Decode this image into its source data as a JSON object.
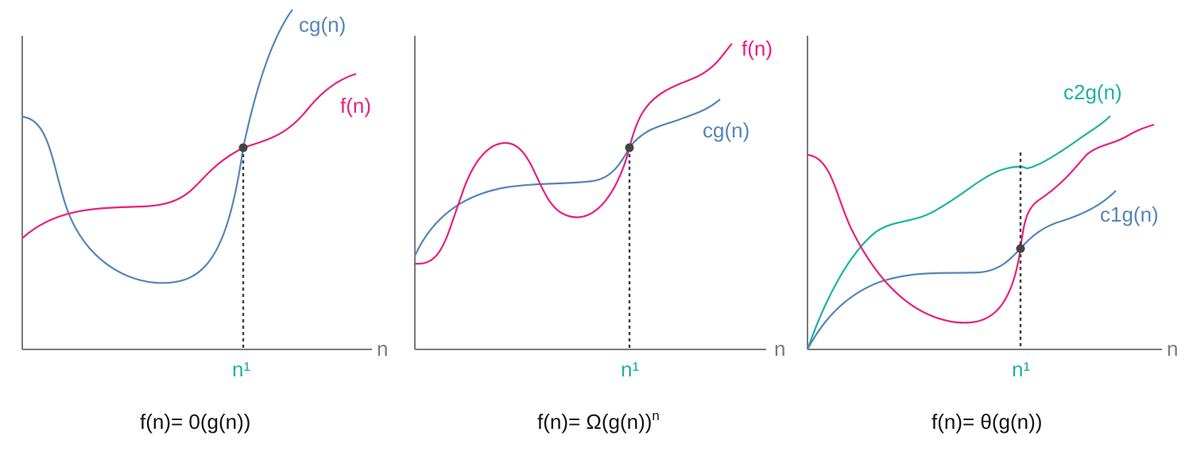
{
  "colors": {
    "f": "#e8217a",
    "g": "#5586b8",
    "g2": "#1cb3a1",
    "axis": "#7a7a7a",
    "marker": "#444444",
    "text": "#111111"
  },
  "panels": [
    {
      "curves": [
        {
          "label": "cg(n)",
          "color_key": "g"
        },
        {
          "label": "f(n)",
          "color_key": "f"
        }
      ],
      "axis_label": "n",
      "marker_label": "n¹",
      "caption": "f(n)= 0(g(n))"
    },
    {
      "curves": [
        {
          "label": "f(n)",
          "color_key": "f"
        },
        {
          "label": "cg(n)",
          "color_key": "g"
        }
      ],
      "axis_label": "n",
      "marker_label": "n¹",
      "caption": "f(n)= Ω(g(n))",
      "caption_sup": "n"
    },
    {
      "curves": [
        {
          "label": "c2g(n)",
          "color_key": "g2"
        },
        {
          "label": "c1g(n)",
          "color_key": "g"
        }
      ],
      "axis_label": "n",
      "marker_label": "n¹",
      "caption": "f(n)= θ(g(n))"
    }
  ]
}
